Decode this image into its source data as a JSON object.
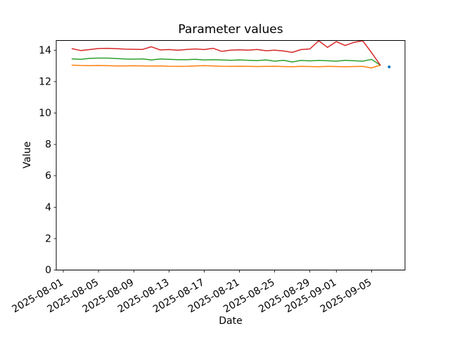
{
  "figure": {
    "background": "#ffffff"
  },
  "chart_data": {
    "type": "line",
    "title": "Parameter values",
    "xlabel": "Date",
    "ylabel": "Value",
    "grid": false,
    "legend": "none",
    "ylim": [
      0,
      14.62
    ],
    "x_margin_days": 1.8,
    "y_tick_labels": [
      0,
      2,
      4,
      6,
      8,
      10,
      12,
      14
    ],
    "x_tick_labels": [
      "2025-08-01",
      "2025-08-05",
      "2025-08-09",
      "2025-08-13",
      "2025-08-17",
      "2025-08-21",
      "2025-08-25",
      "2025-08-29",
      "2025-09-01",
      "2025-09-05"
    ],
    "x_dates": [
      "2025-08-02",
      "2025-08-03",
      "2025-08-04",
      "2025-08-05",
      "2025-08-06",
      "2025-08-07",
      "2025-08-08",
      "2025-08-09",
      "2025-08-10",
      "2025-08-11",
      "2025-08-12",
      "2025-08-13",
      "2025-08-14",
      "2025-08-15",
      "2025-08-16",
      "2025-08-17",
      "2025-08-18",
      "2025-08-19",
      "2025-08-20",
      "2025-08-21",
      "2025-08-22",
      "2025-08-23",
      "2025-08-24",
      "2025-08-25",
      "2025-08-26",
      "2025-08-27",
      "2025-08-28",
      "2025-08-29",
      "2025-08-30",
      "2025-08-31",
      "2025-09-01",
      "2025-09-02",
      "2025-09-03",
      "2025-09-04",
      "2025-09-05",
      "2025-09-06"
    ],
    "series": [
      {
        "name": "line-orange",
        "color": "#ff7f0e",
        "values": [
          13.05,
          13.03,
          13.02,
          13.03,
          13.02,
          13.0,
          13.0,
          13.01,
          13.0,
          12.99,
          13.0,
          12.98,
          12.97,
          12.98,
          13.0,
          13.02,
          13.0,
          12.98,
          12.97,
          12.98,
          12.97,
          12.96,
          12.97,
          12.98,
          12.96,
          12.95,
          12.97,
          12.96,
          12.95,
          12.97,
          12.96,
          12.95,
          12.96,
          12.97,
          12.87,
          13.05
        ]
      },
      {
        "name": "line-green",
        "color": "#2ca02c",
        "values": [
          13.45,
          13.42,
          13.48,
          13.5,
          13.5,
          13.47,
          13.44,
          13.43,
          13.45,
          13.38,
          13.44,
          13.42,
          13.4,
          13.4,
          13.42,
          13.38,
          13.4,
          13.38,
          13.36,
          13.38,
          13.36,
          13.34,
          13.38,
          13.3,
          13.36,
          13.25,
          13.35,
          13.32,
          13.35,
          13.33,
          13.3,
          13.36,
          13.33,
          13.3,
          13.42,
          13.05
        ]
      },
      {
        "name": "line-red",
        "color": "#d62728",
        "values": [
          14.1,
          13.98,
          14.04,
          14.11,
          14.12,
          14.1,
          14.07,
          14.06,
          14.05,
          14.22,
          14.02,
          14.04,
          14.0,
          14.05,
          14.08,
          14.04,
          14.12,
          13.93,
          14.0,
          14.03,
          14.0,
          14.05,
          13.97,
          14.0,
          13.95,
          13.86,
          14.04,
          14.08,
          14.6,
          14.18,
          14.55,
          14.3,
          14.5,
          14.6,
          13.85,
          13.05
        ]
      }
    ],
    "point_series": {
      "name": "point-blue",
      "color": "#1f77b4",
      "date": "2025-09-07",
      "value": 12.94
    }
  }
}
